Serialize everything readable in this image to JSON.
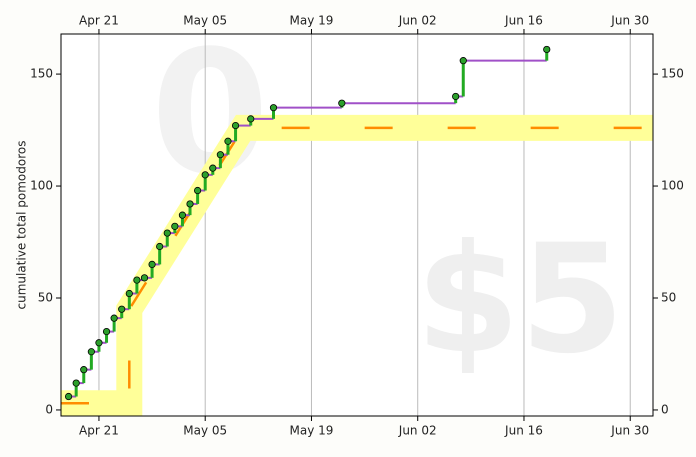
{
  "chart_data": {
    "type": "step",
    "y_label": "cumulative total pomodoros",
    "watermark": "$5",
    "watermark_days": "0",
    "x": [
      "Apr 17",
      "Apr 18",
      "Apr 19",
      "Apr 20",
      "Apr 21",
      "Apr 22",
      "Apr 23",
      "Apr 24",
      "Apr 25",
      "Apr 26",
      "Apr 27",
      "Apr 28",
      "Apr 29",
      "Apr 30",
      "May 01",
      "May 02",
      "May 03",
      "May 04",
      "May 05",
      "May 06",
      "May 07",
      "May 08",
      "May 09",
      "May 11",
      "May 14",
      "May 23",
      "Jun 07",
      "Jun 08",
      "Jun 19"
    ],
    "values": [
      6,
      12,
      18,
      26,
      30,
      35,
      41,
      45,
      52,
      58,
      59,
      65,
      73,
      79,
      82,
      87,
      92,
      98,
      105,
      108,
      114,
      120,
      127,
      130,
      135,
      137,
      140,
      156,
      161
    ],
    "color": "#2ca02c",
    "line_color": "#a050c8",
    "riser_color": "#22aa22",
    "road": {
      "x": [
        "Apr 16",
        "Apr 25",
        "Apr 25",
        "May 10",
        "Jul 03"
      ],
      "values": [
        3,
        3,
        45,
        126,
        126
      ],
      "color": "#ffff99",
      "dash_color": "#ff8c00"
    },
    "xlim": [
      "Apr 16",
      "Jul 03"
    ],
    "xticks": [
      "Apr 21",
      "May 05",
      "May 19",
      "Jun 02",
      "Jun 16",
      "Jun 30"
    ],
    "ylim": [
      -2.7,
      167.9
    ],
    "yticks": [
      0,
      50,
      100,
      150
    ],
    "grid": true
  }
}
